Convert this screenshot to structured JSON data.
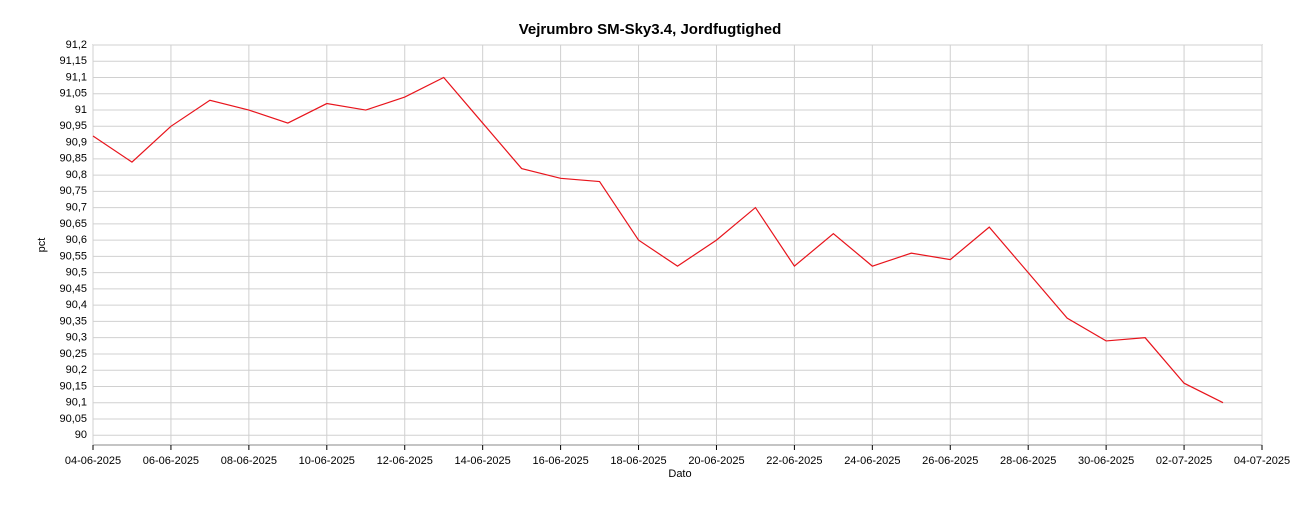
{
  "chart_data": {
    "type": "line",
    "title": "Vejrumbro SM-Sky3.4, Jordfugtighed",
    "xlabel": "Dato",
    "ylabel": "pct",
    "x": [
      "04-06-2025",
      "05-06-2025",
      "06-06-2025",
      "07-06-2025",
      "08-06-2025",
      "09-06-2025",
      "10-06-2025",
      "11-06-2025",
      "12-06-2025",
      "13-06-2025",
      "14-06-2025",
      "15-06-2025",
      "16-06-2025",
      "17-06-2025",
      "18-06-2025",
      "19-06-2025",
      "20-06-2025",
      "21-06-2025",
      "22-06-2025",
      "23-06-2025",
      "24-06-2025",
      "25-06-2025",
      "26-06-2025",
      "27-06-2025",
      "28-06-2025",
      "29-06-2025",
      "30-06-2025",
      "01-07-2025",
      "02-07-2025",
      "03-07-2025"
    ],
    "series": [
      {
        "name": "pct",
        "color": "#e8141c",
        "values": [
          90.92,
          90.84,
          90.95,
          91.03,
          91.0,
          90.96,
          91.02,
          91.0,
          91.04,
          91.1,
          90.96,
          90.82,
          90.79,
          90.78,
          90.6,
          90.52,
          90.6,
          90.7,
          90.52,
          90.62,
          90.52,
          90.56,
          90.54,
          90.64,
          90.5,
          90.36,
          90.29,
          90.3,
          90.16,
          90.1
        ]
      }
    ],
    "xlim": [
      "04-06-2025",
      "04-07-2025"
    ],
    "xticks": [
      "04-06-2025",
      "06-06-2025",
      "08-06-2025",
      "10-06-2025",
      "12-06-2025",
      "14-06-2025",
      "16-06-2025",
      "18-06-2025",
      "20-06-2025",
      "22-06-2025",
      "24-06-2025",
      "26-06-2025",
      "28-06-2025",
      "30-06-2025",
      "02-07-2025",
      "04-07-2025"
    ],
    "ylim": [
      89.97,
      91.2
    ],
    "yticks": [
      90,
      {
        "value": 90.05,
        "label": "90,05"
      },
      {
        "value": 90.1,
        "label": "90,1"
      },
      {
        "value": 90.15,
        "label": "90,15"
      },
      {
        "value": 90.2,
        "label": "90,2"
      },
      {
        "value": 90.25,
        "label": "90,25"
      },
      {
        "value": 90.3,
        "label": "90,3"
      },
      {
        "value": 90.35,
        "label": "90,35"
      },
      {
        "value": 90.4,
        "label": "90,4"
      },
      {
        "value": 90.45,
        "label": "90,45"
      },
      {
        "value": 90.5,
        "label": "90,5"
      },
      {
        "value": 90.55,
        "label": "90,55"
      },
      {
        "value": 90.6,
        "label": "90,6"
      },
      {
        "value": 90.65,
        "label": "90,65"
      },
      {
        "value": 90.7,
        "label": "90,7"
      },
      {
        "value": 90.75,
        "label": "90,75"
      },
      {
        "value": 90.8,
        "label": "90,8"
      },
      {
        "value": 90.85,
        "label": "90,85"
      },
      {
        "value": 90.9,
        "label": "90,9"
      },
      {
        "value": 90.95,
        "label": "90,95"
      },
      {
        "value": 91,
        "label": "91"
      },
      {
        "value": 91.05,
        "label": "91,05"
      },
      {
        "value": 91.1,
        "label": "91,1"
      },
      {
        "value": 91.15,
        "label": "91,15"
      },
      {
        "value": 91.2,
        "label": "91,2"
      }
    ],
    "grid": true
  }
}
